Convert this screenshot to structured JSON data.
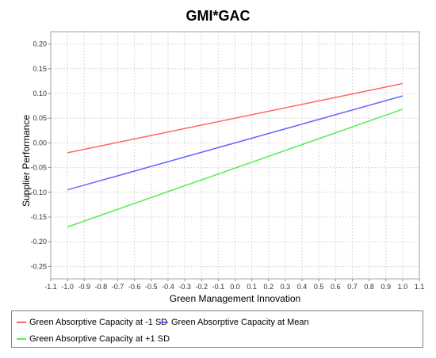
{
  "chart_data": {
    "type": "line",
    "title": "GMI*GAC",
    "xlabel": "Green Management Innovation",
    "ylabel": "Supplier Performance",
    "xlim": [
      -1.1,
      1.1
    ],
    "ylim": [
      -0.275,
      0.225
    ],
    "x_ticks": [
      "-1.1",
      "-1.0",
      "-0.9",
      "-0.8",
      "-0.7",
      "-0.6",
      "-0.5",
      "-0.4",
      "-0.3",
      "-0.2",
      "-0.1",
      "0.0",
      "0.1",
      "0.2",
      "0.3",
      "0.4",
      "0.5",
      "0.6",
      "0.7",
      "0.8",
      "0.9",
      "1.0",
      "1.1"
    ],
    "y_ticks": [
      "0.20",
      "0.15",
      "0.10",
      "0.05",
      "0.00",
      "-0.05",
      "-0.10",
      "-0.15",
      "-0.20",
      "-0.25"
    ],
    "grid": true,
    "legend_position": "bottom",
    "series": [
      {
        "name": "Green Absorptive Capacity at -1 SD",
        "color": "#ff6666",
        "x": [
          -1.0,
          1.0
        ],
        "y": [
          -0.02,
          0.12
        ]
      },
      {
        "name": "Green Absorptive Capacity at Mean",
        "color": "#6666ff",
        "x": [
          -1.0,
          1.0
        ],
        "y": [
          -0.095,
          0.095
        ]
      },
      {
        "name": "Green Absorptive Capacity at +1 SD",
        "color": "#55ee55",
        "x": [
          -1.0,
          1.0
        ],
        "y": [
          -0.17,
          0.068
        ]
      }
    ]
  }
}
